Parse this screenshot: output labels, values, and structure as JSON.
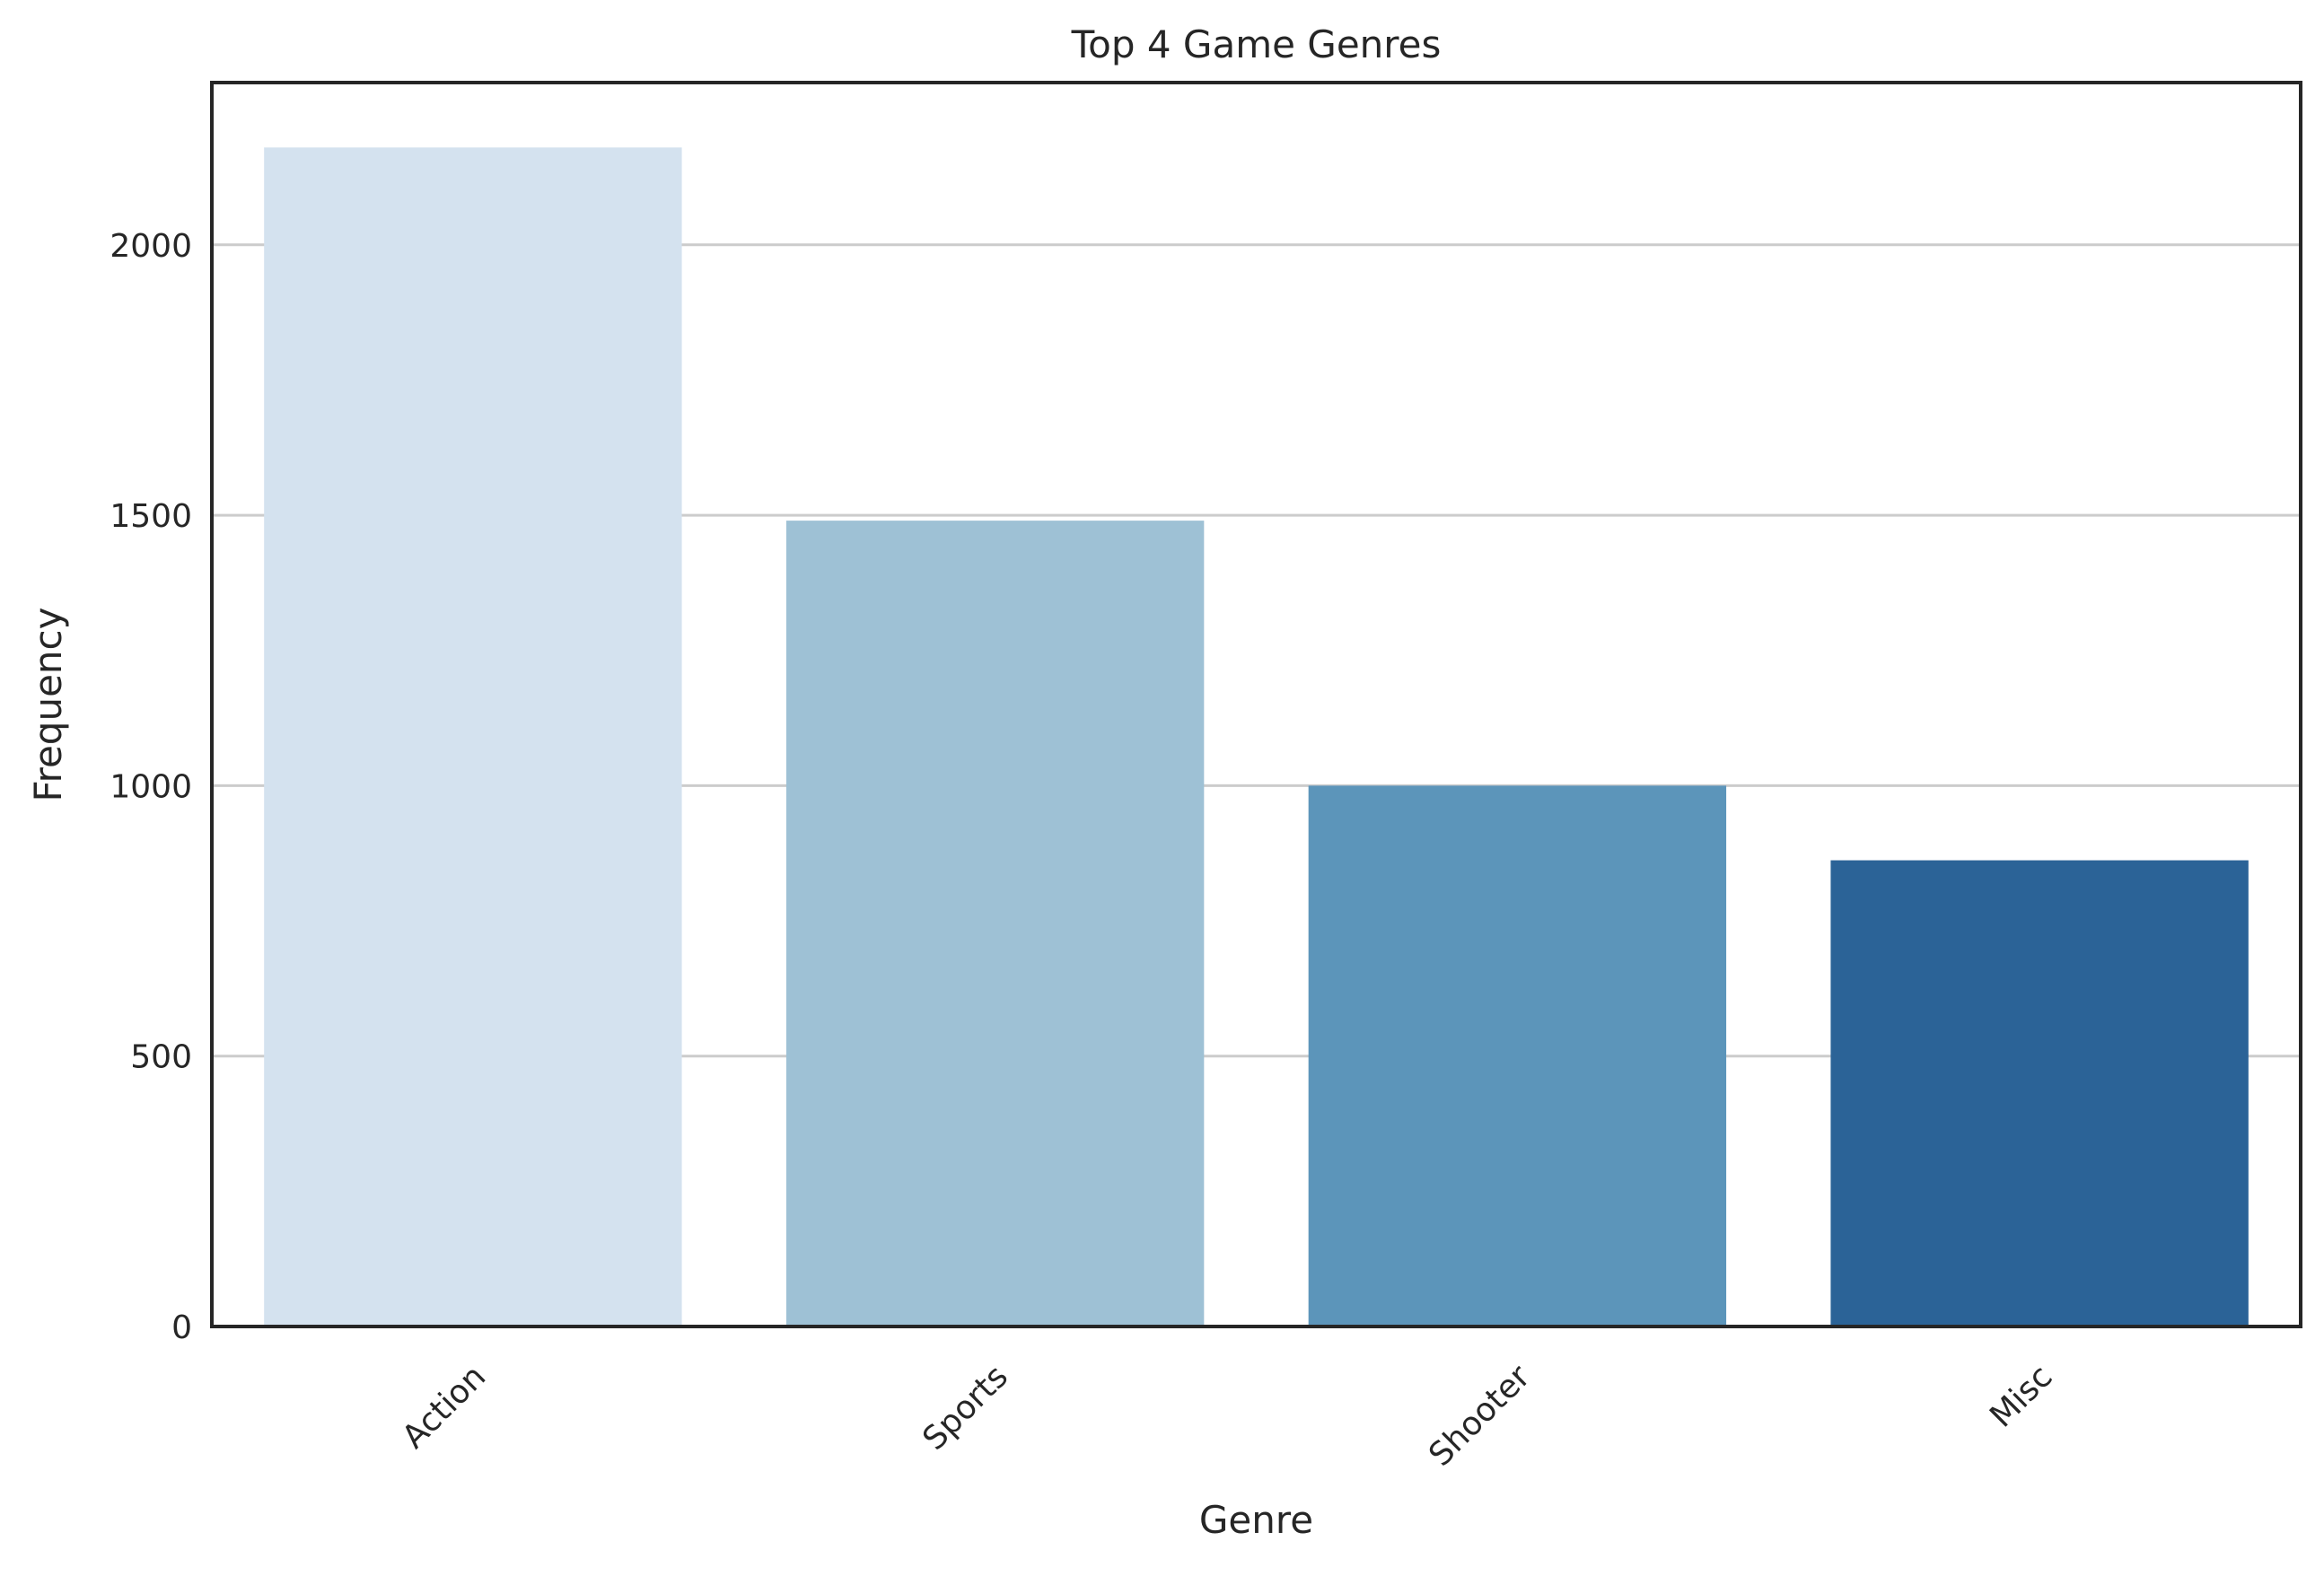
{
  "chart_data": {
    "type": "bar",
    "title": "Top 4 Game Genres",
    "xlabel": "Genre",
    "ylabel": "Frequency",
    "categories": [
      "Action",
      "Sports",
      "Shooter",
      "Misc"
    ],
    "values": [
      2180,
      1490,
      1000,
      862
    ],
    "bar_colors": [
      "#d4e2ef",
      "#9ec1d5",
      "#5c95ba",
      "#2b6397"
    ],
    "ylim": [
      0,
      2300
    ],
    "yticks": [
      0,
      500,
      1000,
      1500,
      2000
    ],
    "ytick_labels": [
      "0",
      "500",
      "1000",
      "1500",
      "2000"
    ],
    "grid": "horizontal",
    "grid_color": "#cccccc",
    "axis_color": "#262626",
    "xtick_rotation_deg": 45
  }
}
